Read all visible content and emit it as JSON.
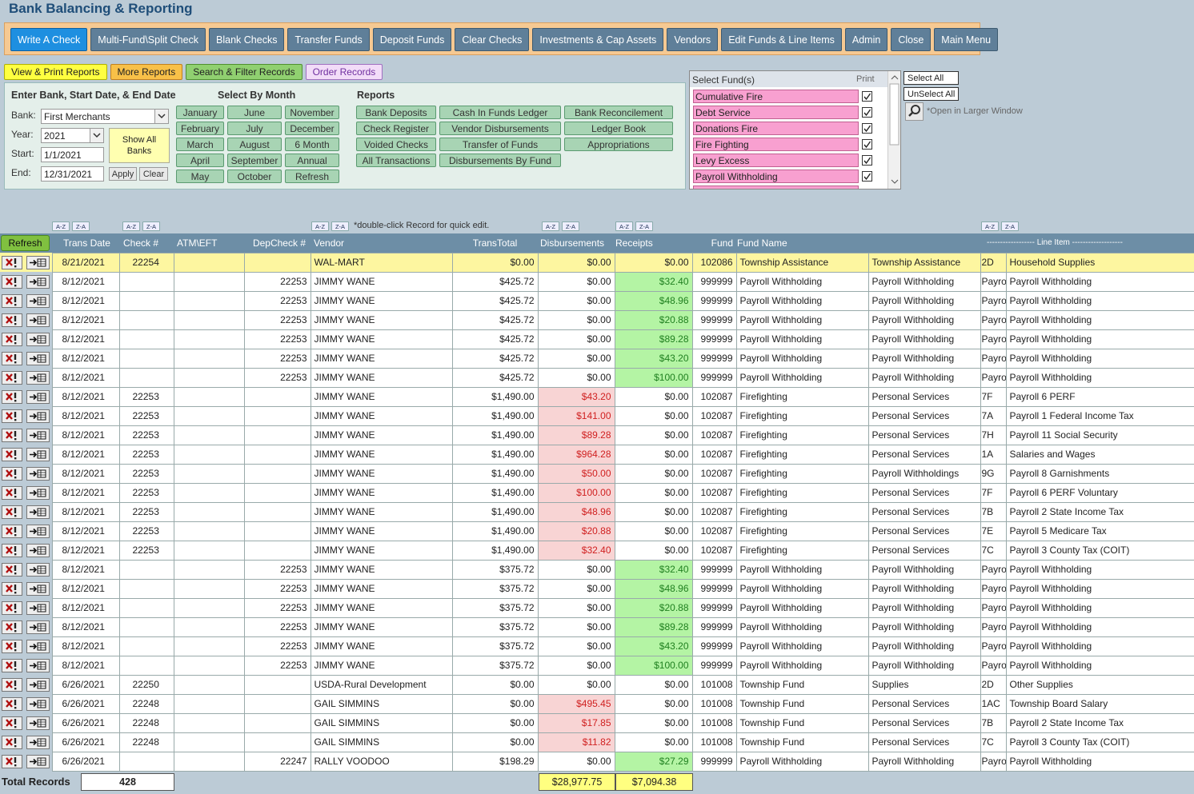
{
  "header": {
    "title": "Bank Balancing & Reporting"
  },
  "toolbar": [
    "Write A Check",
    "Multi-Fund\\Split Check",
    "Blank Checks",
    "Transfer Funds",
    "Deposit Funds",
    "Clear Checks",
    "Investments & Cap Assets",
    "Vendors",
    "Edit Funds & Line Items",
    "Admin",
    "Close",
    "Main Menu"
  ],
  "tabs": [
    "View & Print Reports",
    "More Reports",
    "Search & Filter Records",
    "Order Records"
  ],
  "filter_panel": {
    "heading": "Enter Bank, Start Date, & End Date",
    "bank_label": "Bank:",
    "bank": "First Merchants",
    "year_label": "Year:",
    "year": "2021",
    "start_label": "Start:",
    "start": "1/1/2021",
    "end_label": "End:",
    "end": "12/31/2021",
    "show_all_banks": "Show All Banks",
    "apply": "Apply",
    "clear": "Clear"
  },
  "months": {
    "heading": "Select By Month",
    "buttons": [
      "January",
      "June",
      "November",
      "February",
      "July",
      "December",
      "March",
      "August",
      "6 Month",
      "April",
      "September",
      "Annual",
      "May",
      "October",
      "Refresh"
    ]
  },
  "reports": {
    "heading": "Reports",
    "buttons": [
      "Bank Deposits",
      "Cash In Funds Ledger",
      "Bank Reconcilement",
      "Check Register",
      "Vendor Disbursements",
      "Ledger Book",
      "Voided Checks",
      "Transfer of Funds",
      "Appropriations",
      "All Transactions",
      "Disbursements By Fund"
    ]
  },
  "funds": {
    "heading": "Select Fund(s)",
    "print_label": "Print",
    "items": [
      {
        "name": "Cumulative Fire",
        "checked": true
      },
      {
        "name": "Debt Service",
        "checked": true
      },
      {
        "name": "Donations Fire",
        "checked": true
      },
      {
        "name": "Fire Fighting",
        "checked": true
      },
      {
        "name": "Levy Excess",
        "checked": true
      },
      {
        "name": "Payroll Withholding",
        "checked": true
      }
    ],
    "select_all": "Select All",
    "unselect_all": "UnSelect All",
    "larger_window": "*Open in Larger Window"
  },
  "sort": {
    "asc": "A-Z",
    "desc": "Z-A",
    "note": "*double-click Record for quick edit."
  },
  "table": {
    "refresh": "Refresh",
    "columns": [
      "Trans Date",
      "Check #",
      "ATM\\EFT",
      "DepCheck #",
      "Vendor",
      "TransTotal",
      "Disbursements",
      "Receipts",
      "Fund",
      "Fund Name",
      "------------------ Line Item -------------------"
    ],
    "rows": [
      [
        "8/21/2021",
        22254,
        null,
        null,
        "WAL-MART",
        "$0.00",
        "$0.00",
        "$0.00",
        102086,
        "Township Assistance",
        "Township Assistance",
        "2D",
        "Household Supplies"
      ],
      [
        "8/12/2021",
        null,
        null,
        22253,
        "JIMMY WANE",
        "$425.72",
        "$0.00",
        "$32.40",
        999999,
        "Payroll Withholding",
        "Payroll Withholding",
        "Payro",
        "Payroll Withholding"
      ],
      [
        "8/12/2021",
        null,
        null,
        22253,
        "JIMMY WANE",
        "$425.72",
        "$0.00",
        "$48.96",
        999999,
        "Payroll Withholding",
        "Payroll Withholding",
        "Payro",
        "Payroll Withholding"
      ],
      [
        "8/12/2021",
        null,
        null,
        22253,
        "JIMMY WANE",
        "$425.72",
        "$0.00",
        "$20.88",
        999999,
        "Payroll Withholding",
        "Payroll Withholding",
        "Payro",
        "Payroll Withholding"
      ],
      [
        "8/12/2021",
        null,
        null,
        22253,
        "JIMMY WANE",
        "$425.72",
        "$0.00",
        "$89.28",
        999999,
        "Payroll Withholding",
        "Payroll Withholding",
        "Payro",
        "Payroll Withholding"
      ],
      [
        "8/12/2021",
        null,
        null,
        22253,
        "JIMMY WANE",
        "$425.72",
        "$0.00",
        "$43.20",
        999999,
        "Payroll Withholding",
        "Payroll Withholding",
        "Payro",
        "Payroll Withholding"
      ],
      [
        "8/12/2021",
        null,
        null,
        22253,
        "JIMMY WANE",
        "$425.72",
        "$0.00",
        "$100.00",
        999999,
        "Payroll Withholding",
        "Payroll Withholding",
        "Payro",
        "Payroll Withholding"
      ],
      [
        "8/12/2021",
        22253,
        null,
        null,
        "JIMMY WANE",
        "$1,490.00",
        "$43.20",
        "$0.00",
        102087,
        "Firefighting",
        "Personal Services",
        "7F",
        "Payroll 6 PERF"
      ],
      [
        "8/12/2021",
        22253,
        null,
        null,
        "JIMMY WANE",
        "$1,490.00",
        "$141.00",
        "$0.00",
        102087,
        "Firefighting",
        "Personal Services",
        "7A",
        "Payroll 1 Federal Income Tax"
      ],
      [
        "8/12/2021",
        22253,
        null,
        null,
        "JIMMY WANE",
        "$1,490.00",
        "$89.28",
        "$0.00",
        102087,
        "Firefighting",
        "Personal Services",
        "7H",
        "Payroll 11 Social Security"
      ],
      [
        "8/12/2021",
        22253,
        null,
        null,
        "JIMMY WANE",
        "$1,490.00",
        "$964.28",
        "$0.00",
        102087,
        "Firefighting",
        "Personal Services",
        "1A",
        "Salaries and Wages"
      ],
      [
        "8/12/2021",
        22253,
        null,
        null,
        "JIMMY WANE",
        "$1,490.00",
        "$50.00",
        "$0.00",
        102087,
        "Firefighting",
        "Payroll Withholdings",
        "9G",
        "Payroll 8 Garnishments"
      ],
      [
        "8/12/2021",
        22253,
        null,
        null,
        "JIMMY WANE",
        "$1,490.00",
        "$100.00",
        "$0.00",
        102087,
        "Firefighting",
        "Personal Services",
        "7F",
        "Payroll 6 PERF Voluntary"
      ],
      [
        "8/12/2021",
        22253,
        null,
        null,
        "JIMMY WANE",
        "$1,490.00",
        "$48.96",
        "$0.00",
        102087,
        "Firefighting",
        "Personal Services",
        "7B",
        "Payroll 2 State Income Tax"
      ],
      [
        "8/12/2021",
        22253,
        null,
        null,
        "JIMMY WANE",
        "$1,490.00",
        "$20.88",
        "$0.00",
        102087,
        "Firefighting",
        "Personal Services",
        "7E",
        "Payroll 5 Medicare Tax"
      ],
      [
        "8/12/2021",
        22253,
        null,
        null,
        "JIMMY WANE",
        "$1,490.00",
        "$32.40",
        "$0.00",
        102087,
        "Firefighting",
        "Personal Services",
        "7C",
        "Payroll 3 County Tax (COIT)"
      ],
      [
        "8/12/2021",
        null,
        null,
        22253,
        "JIMMY WANE",
        "$375.72",
        "$0.00",
        "$32.40",
        999999,
        "Payroll Withholding",
        "Payroll Withholding",
        "Payro",
        "Payroll Withholding"
      ],
      [
        "8/12/2021",
        null,
        null,
        22253,
        "JIMMY WANE",
        "$375.72",
        "$0.00",
        "$48.96",
        999999,
        "Payroll Withholding",
        "Payroll Withholding",
        "Payro",
        "Payroll Withholding"
      ],
      [
        "8/12/2021",
        null,
        null,
        22253,
        "JIMMY WANE",
        "$375.72",
        "$0.00",
        "$20.88",
        999999,
        "Payroll Withholding",
        "Payroll Withholding",
        "Payro",
        "Payroll Withholding"
      ],
      [
        "8/12/2021",
        null,
        null,
        22253,
        "JIMMY WANE",
        "$375.72",
        "$0.00",
        "$89.28",
        999999,
        "Payroll Withholding",
        "Payroll Withholding",
        "Payro",
        "Payroll Withholding"
      ],
      [
        "8/12/2021",
        null,
        null,
        22253,
        "JIMMY WANE",
        "$375.72",
        "$0.00",
        "$43.20",
        999999,
        "Payroll Withholding",
        "Payroll Withholding",
        "Payro",
        "Payroll Withholding"
      ],
      [
        "8/12/2021",
        null,
        null,
        22253,
        "JIMMY WANE",
        "$375.72",
        "$0.00",
        "$100.00",
        999999,
        "Payroll Withholding",
        "Payroll Withholding",
        "Payro",
        "Payroll Withholding"
      ],
      [
        "6/26/2021",
        22250,
        null,
        null,
        "USDA-Rural Development",
        "$0.00",
        "$0.00",
        "$0.00",
        101008,
        "Township Fund",
        "Supplies",
        "2D",
        "Other Supplies"
      ],
      [
        "6/26/2021",
        22248,
        null,
        null,
        "GAIL SIMMINS",
        "$0.00",
        "$495.45",
        "$0.00",
        101008,
        "Township Fund",
        "Personal Services",
        "1AC",
        "Township Board Salary"
      ],
      [
        "6/26/2021",
        22248,
        null,
        null,
        "GAIL SIMMINS",
        "$0.00",
        "$17.85",
        "$0.00",
        101008,
        "Township Fund",
        "Personal Services",
        "7B",
        "Payroll 2 State Income Tax"
      ],
      [
        "6/26/2021",
        22248,
        null,
        null,
        "GAIL SIMMINS",
        "$0.00",
        "$11.82",
        "$0.00",
        101008,
        "Township Fund",
        "Personal Services",
        "7C",
        "Payroll 3 County Tax (COIT)"
      ],
      [
        "6/26/2021",
        null,
        null,
        22247,
        "RALLY VOODOO",
        "$198.29",
        "$0.00",
        "$27.29",
        999999,
        "Payroll Withholding",
        "Payroll Withholding",
        "Payro",
        "Payroll Withholding"
      ]
    ]
  },
  "footer": {
    "label": "Total Records",
    "count": 428,
    "disbursements_total": "$28,977.75",
    "receipts_total": "$7,094.38"
  }
}
